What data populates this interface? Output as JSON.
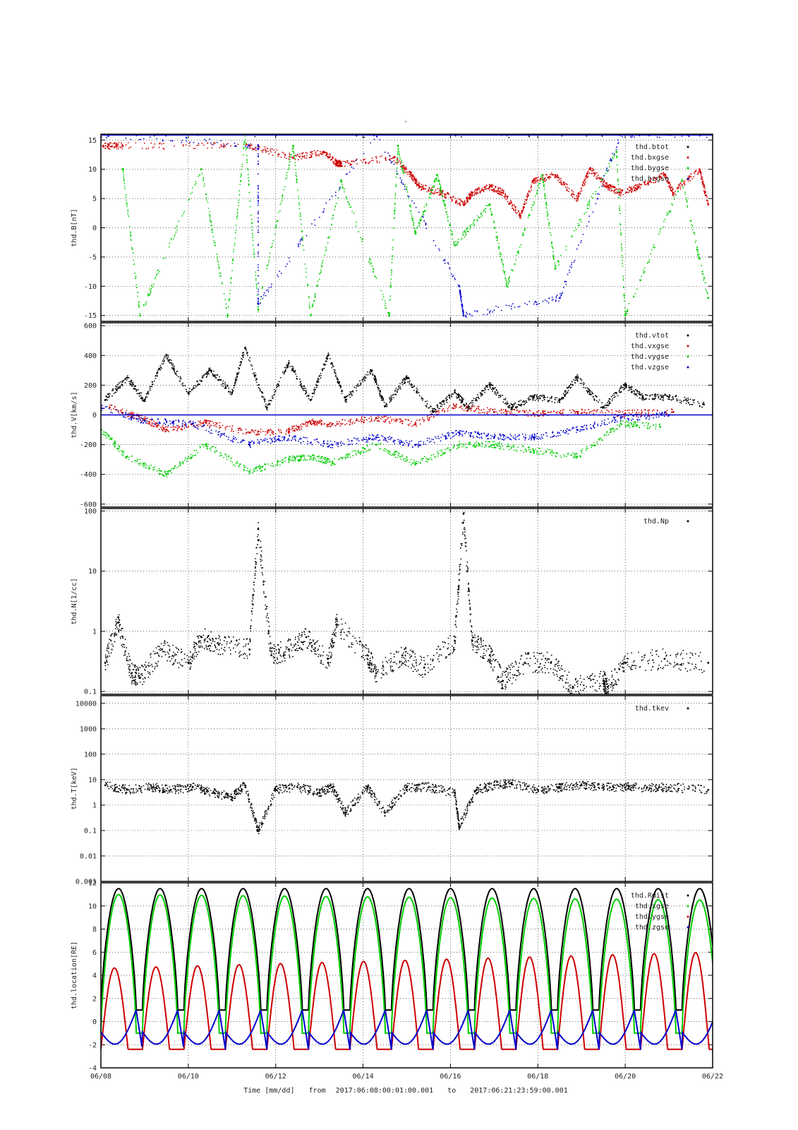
{
  "figure": {
    "title": "-",
    "xlabel_prefix": "Time [mm/dd]",
    "from_label": "from",
    "from": "2017:06:08:00:01:00.001",
    "to_label": "to",
    "to": "2017:06:21:23:59:00.001"
  },
  "chart_data": [
    {
      "type": "scatter",
      "id": "B",
      "ylabel": "thd.B[nT]",
      "yscale": "linear",
      "ylim": [
        -16,
        16
      ],
      "yticks": [
        -15,
        -10,
        -5,
        0,
        5,
        10,
        15
      ],
      "grid": true,
      "legend_position": "top-right",
      "series": [
        {
          "name": "thd.btot",
          "color": "#000000",
          "values": [
            [
              0.0,
              16
            ],
            [
              14.0,
              16
            ]
          ]
        },
        {
          "name": "thd.bxgse",
          "color": "#cc0000",
          "values": [
            [
              0.05,
              14
            ],
            [
              0.5,
              14
            ],
            [
              3.4,
              14
            ],
            [
              4.4,
              12
            ],
            [
              5.1,
              13
            ],
            [
              5.4,
              11
            ],
            [
              5.5,
              11
            ],
            [
              6.7,
              12
            ],
            [
              7.1,
              9
            ],
            [
              7.3,
              7
            ],
            [
              7.8,
              6
            ],
            [
              8.3,
              4
            ],
            [
              8.5,
              6
            ],
            [
              8.9,
              7
            ],
            [
              9.2,
              6
            ],
            [
              9.6,
              2
            ],
            [
              9.9,
              8
            ],
            [
              10.4,
              9
            ],
            [
              10.9,
              5
            ],
            [
              11.2,
              10
            ],
            [
              11.6,
              7
            ],
            [
              11.9,
              6
            ],
            [
              12.3,
              7
            ],
            [
              12.9,
              9
            ],
            [
              13.1,
              6
            ],
            [
              13.7,
              10
            ],
            [
              13.9,
              4
            ]
          ]
        },
        {
          "name": "thd.bygse",
          "color": "#00cc00",
          "values": [
            [
              0.5,
              10
            ],
            [
              0.9,
              -15
            ],
            [
              2.3,
              10
            ],
            [
              2.9,
              -15
            ],
            [
              3.3,
              16
            ],
            [
              3.6,
              -14
            ],
            [
              4.4,
              14
            ],
            [
              4.8,
              -15
            ],
            [
              5.5,
              8
            ],
            [
              6.6,
              -15
            ],
            [
              6.8,
              14
            ],
            [
              7.2,
              -1
            ],
            [
              7.7,
              9
            ],
            [
              8.1,
              -3
            ],
            [
              8.9,
              4
            ],
            [
              9.3,
              -10
            ],
            [
              10.1,
              9
            ],
            [
              10.4,
              -7
            ],
            [
              11.8,
              13
            ],
            [
              12.0,
              -15
            ],
            [
              13.3,
              8
            ],
            [
              13.9,
              -12
            ]
          ]
        },
        {
          "name": "thd.bzgse",
          "color": "#0000cc",
          "values": [
            [
              0.0,
              16
            ],
            [
              3.6,
              14
            ],
            [
              3.6,
              -13
            ],
            [
              6.3,
              16
            ],
            [
              8.2,
              -10
            ],
            [
              8.3,
              -15
            ],
            [
              10.5,
              -12
            ],
            [
              11.9,
              16
            ],
            [
              14.0,
              16
            ]
          ]
        }
      ]
    },
    {
      "type": "scatter",
      "id": "V",
      "ylabel": "thd.V[km/s]",
      "yscale": "linear",
      "ylim": [
        -620,
        620
      ],
      "yticks": [
        -600,
        -400,
        -200,
        0,
        200,
        400,
        600
      ],
      "grid": true,
      "legend_position": "top-right",
      "series": [
        {
          "name": "thd.vtot",
          "color": "#000000",
          "values": [
            [
              0.1,
              100
            ],
            [
              0.6,
              250
            ],
            [
              1.0,
              100
            ],
            [
              1.5,
              400
            ],
            [
              2.0,
              150
            ],
            [
              2.5,
              300
            ],
            [
              3.0,
              150
            ],
            [
              3.3,
              450
            ],
            [
              3.8,
              50
            ],
            [
              4.3,
              350
            ],
            [
              4.8,
              100
            ],
            [
              5.2,
              400
            ],
            [
              5.6,
              100
            ],
            [
              6.2,
              300
            ],
            [
              6.5,
              60
            ],
            [
              7.0,
              250
            ],
            [
              7.6,
              20
            ],
            [
              8.1,
              150
            ],
            [
              8.4,
              50
            ],
            [
              8.9,
              200
            ],
            [
              9.4,
              50
            ],
            [
              9.9,
              120
            ],
            [
              10.5,
              100
            ],
            [
              10.9,
              250
            ],
            [
              11.5,
              50
            ],
            [
              12.0,
              200
            ],
            [
              12.4,
              120
            ],
            [
              13.0,
              120
            ],
            [
              13.8,
              70
            ]
          ]
        },
        {
          "name": "thd.vxgse",
          "color": "#cc0000",
          "values": [
            [
              0.2,
              50
            ],
            [
              1.0,
              -30
            ],
            [
              1.5,
              -100
            ],
            [
              2.4,
              -50
            ],
            [
              3.4,
              -120
            ],
            [
              4.3,
              -110
            ],
            [
              4.8,
              -50
            ],
            [
              5.3,
              -60
            ],
            [
              6.3,
              -20
            ],
            [
              7.2,
              -60
            ],
            [
              8.1,
              60
            ],
            [
              9.0,
              20
            ],
            [
              9.9,
              10
            ],
            [
              10.9,
              20
            ],
            [
              12.0,
              10
            ],
            [
              13.1,
              20
            ]
          ]
        },
        {
          "name": "thd.vygse",
          "color": "#00cc00",
          "values": [
            [
              0.0,
              -100
            ],
            [
              0.6,
              -280
            ],
            [
              1.5,
              -400
            ],
            [
              2.4,
              -200
            ],
            [
              3.4,
              -380
            ],
            [
              4.3,
              -300
            ],
            [
              4.8,
              -280
            ],
            [
              5.3,
              -320
            ],
            [
              6.3,
              -200
            ],
            [
              7.2,
              -330
            ],
            [
              8.2,
              -200
            ],
            [
              9.0,
              -200
            ],
            [
              9.9,
              -240
            ],
            [
              10.9,
              -280
            ],
            [
              11.9,
              -60
            ],
            [
              12.8,
              -80
            ]
          ]
        },
        {
          "name": "thd.vzgse",
          "color": "#0000cc",
          "values": [
            [
              0.0,
              50
            ],
            [
              1.0,
              -40
            ],
            [
              2.1,
              -60
            ],
            [
              3.4,
              -200
            ],
            [
              4.2,
              -150
            ],
            [
              5.3,
              -200
            ],
            [
              6.3,
              -150
            ],
            [
              7.2,
              -200
            ],
            [
              8.2,
              -120
            ],
            [
              9.0,
              -150
            ],
            [
              9.9,
              -150
            ],
            [
              10.9,
              -100
            ],
            [
              11.9,
              -20
            ],
            [
              13.0,
              0
            ]
          ]
        }
      ]
    },
    {
      "type": "scatter",
      "id": "N",
      "ylabel": "thd.N[1/cc]",
      "yscale": "log",
      "ylim": [
        0.09,
        110
      ],
      "yticks": [
        0.1,
        1,
        10,
        100
      ],
      "ytick_labels": [
        "0.1",
        "1",
        "10",
        "100"
      ],
      "grid": true,
      "legend_position": "top-right",
      "series": [
        {
          "name": "thd.Np",
          "color": "#000000",
          "values": [
            [
              0.1,
              0.3
            ],
            [
              0.4,
              1.4
            ],
            [
              0.7,
              0.2
            ],
            [
              0.9,
              0.17
            ],
            [
              1.4,
              0.5
            ],
            [
              2.0,
              0.3
            ],
            [
              2.3,
              0.8
            ],
            [
              2.7,
              0.6
            ],
            [
              3.4,
              0.5
            ],
            [
              3.6,
              50
            ],
            [
              3.9,
              0.4
            ],
            [
              4.3,
              0.5
            ],
            [
              4.7,
              0.8
            ],
            [
              5.2,
              0.3
            ],
            [
              5.4,
              1.3
            ],
            [
              6.1,
              0.4
            ],
            [
              6.3,
              0.2
            ],
            [
              6.9,
              0.4
            ],
            [
              7.4,
              0.25
            ],
            [
              8.1,
              0.7
            ],
            [
              8.3,
              90
            ],
            [
              8.5,
              0.7
            ],
            [
              8.9,
              0.4
            ],
            [
              9.2,
              0.15
            ],
            [
              9.7,
              0.3
            ],
            [
              10.3,
              0.3
            ],
            [
              10.8,
              0.12
            ],
            [
              11.5,
              0.15
            ],
            [
              11.6,
              0.12
            ],
            [
              12.0,
              0.3
            ],
            [
              12.9,
              0.35
            ],
            [
              13.9,
              0.3
            ]
          ]
        }
      ]
    },
    {
      "type": "scatter",
      "id": "T",
      "ylabel": "thd.T[keV]",
      "yscale": "log",
      "ylim": [
        0.001,
        20000
      ],
      "yticks": [
        0.001,
        0.01,
        0.1,
        1,
        10,
        100,
        1000,
        10000
      ],
      "ytick_labels": [
        "0.001",
        "0.01",
        "0.1",
        "1",
        "10",
        "100",
        "1000",
        "10000"
      ],
      "grid": true,
      "legend_position": "top-right",
      "series": [
        {
          "name": "thd.tkev",
          "color": "#000000",
          "values": [
            [
              0.1,
              6
            ],
            [
              0.6,
              4
            ],
            [
              1.2,
              5
            ],
            [
              1.6,
              4
            ],
            [
              2.1,
              5
            ],
            [
              2.6,
              3
            ],
            [
              3.0,
              2
            ],
            [
              3.3,
              6
            ],
            [
              3.6,
              0.1
            ],
            [
              4.0,
              4
            ],
            [
              4.5,
              5
            ],
            [
              5.0,
              3
            ],
            [
              5.3,
              5
            ],
            [
              5.6,
              0.5
            ],
            [
              6.1,
              5
            ],
            [
              6.5,
              0.5
            ],
            [
              7.0,
              5
            ],
            [
              7.5,
              5
            ],
            [
              8.1,
              3
            ],
            [
              8.2,
              0.15
            ],
            [
              8.6,
              4
            ],
            [
              9.0,
              6
            ],
            [
              9.4,
              7
            ],
            [
              10.0,
              4
            ],
            [
              10.5,
              5
            ],
            [
              11.0,
              6
            ],
            [
              11.5,
              5
            ],
            [
              12.0,
              5
            ],
            [
              12.5,
              5
            ],
            [
              13.0,
              5
            ],
            [
              13.9,
              4
            ]
          ]
        }
      ]
    },
    {
      "type": "line",
      "id": "location",
      "ylabel": "thd.location[RE]",
      "yscale": "linear",
      "ylim": [
        -4,
        12
      ],
      "yticks": [
        -4,
        -2,
        0,
        2,
        4,
        6,
        8,
        10,
        12
      ],
      "grid": true,
      "legend_position": "top-right",
      "orbit_period_days": 0.95,
      "series": [
        {
          "name": "thd.Rdist",
          "color": "#000000",
          "apogee": [
            11.5,
            11.5
          ],
          "perigee": [
            1.0,
            1.0
          ]
        },
        {
          "name": "thd.xgse",
          "color": "#00cc00",
          "apogee": [
            11.0,
            10.5
          ],
          "perigee": [
            -1.0,
            -1.0
          ]
        },
        {
          "name": "thd.ygse",
          "color": "#cc0000",
          "apogee": [
            4.6,
            6.0
          ],
          "perigee": [
            -2.4,
            -2.4
          ]
        },
        {
          "name": "thd.zgse",
          "color": "#0000cc",
          "apogee": [
            1.0,
            1.0
          ],
          "perigee": [
            -2.8,
            -2.8
          ]
        }
      ]
    }
  ],
  "xaxis": {
    "range_days": [
      0,
      14
    ],
    "ticks": [
      0,
      2,
      4,
      6,
      8,
      10,
      12,
      14
    ],
    "tick_labels": [
      "06/08",
      "06/10",
      "06/12",
      "06/14",
      "06/16",
      "06/18",
      "06/20",
      "06/22"
    ]
  }
}
